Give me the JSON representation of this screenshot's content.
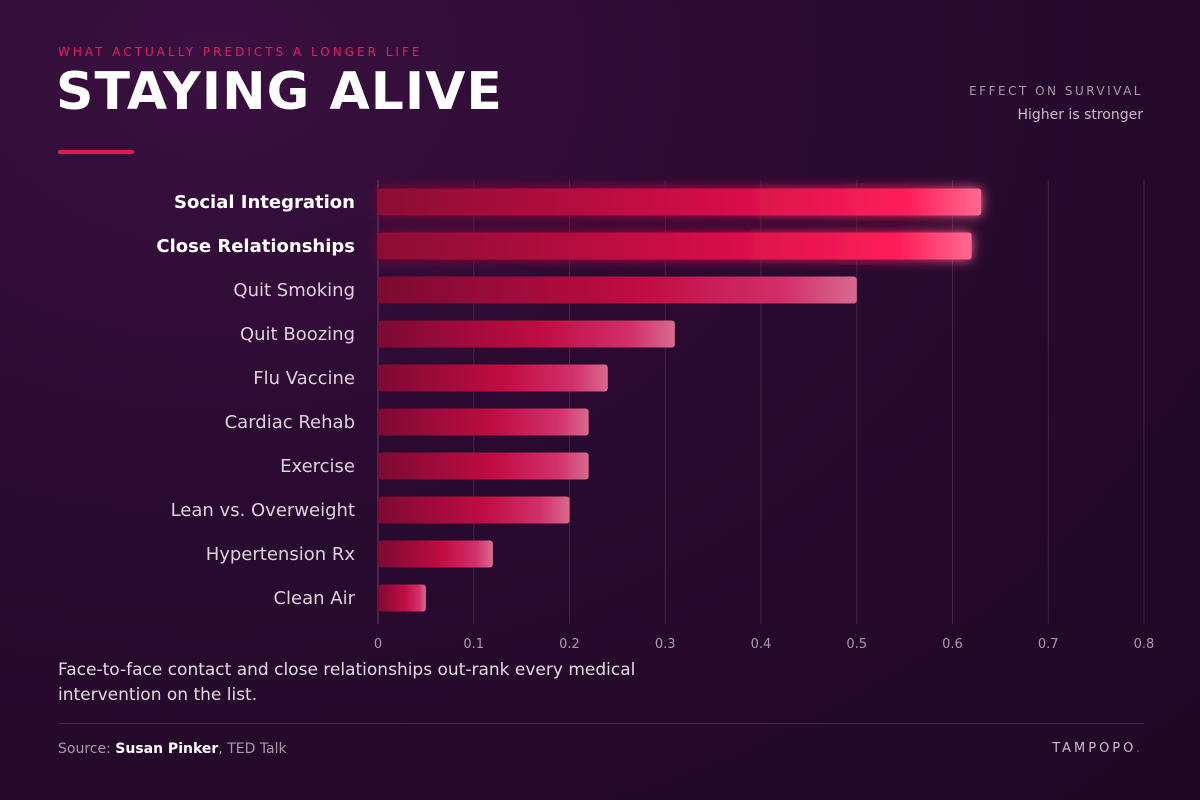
{
  "header": {
    "eyebrow": "WHAT ACTUALLY PREDICTS A LONGER LIFE",
    "title": "STAYING ALIVE"
  },
  "legend": {
    "heading": "EFFECT ON SURVIVAL",
    "subheading": "Higher is stronger"
  },
  "caption": "Face-to-face contact and close relationships out-rank every medical intervention on the list.",
  "footer": {
    "source_prefix": "Source: ",
    "source_name": "Susan Pinker",
    "source_suffix": ", TED Talk",
    "brand": "TAMPOPO",
    "brand_dot": "."
  },
  "colors": {
    "accent": "#e2184e",
    "bar_dark": "#8a0a34",
    "bar_bright": "#ff1f5a",
    "bar_end": "#ff6a92",
    "grid": "#5a3a5c",
    "tick": "#a89aa8"
  },
  "chart_data": {
    "type": "bar",
    "orientation": "horizontal",
    "categories": [
      "Social Integration",
      "Close Relationships",
      "Quit Smoking",
      "Quit Boozing",
      "Flu Vaccine",
      "Cardiac Rehab",
      "Exercise",
      "Lean vs. Overweight",
      "Hypertension Rx",
      "Clean Air"
    ],
    "highlighted": [
      "Social Integration",
      "Close Relationships"
    ],
    "values": [
      0.63,
      0.62,
      0.5,
      0.31,
      0.24,
      0.22,
      0.22,
      0.2,
      0.12,
      0.05
    ],
    "xlim": [
      0,
      0.8
    ],
    "xticks": [
      0,
      0.1,
      0.2,
      0.3,
      0.4,
      0.5,
      0.6,
      0.7,
      0.8
    ],
    "xtick_labels": [
      "0",
      "0.1",
      "0.2",
      "0.3",
      "0.4",
      "0.5",
      "0.6",
      "0.7",
      "0.8"
    ],
    "grid": "vertical"
  }
}
